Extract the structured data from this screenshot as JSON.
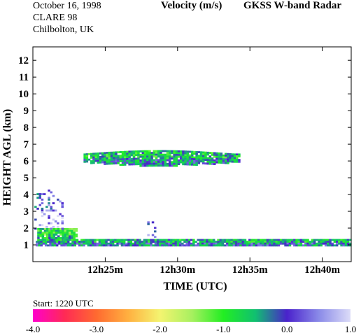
{
  "header": {
    "date": "October  16, 1998",
    "campaign": "CLARE 98",
    "location": "Chilbolton, UK",
    "quantity": "Velocity (m/s)",
    "instrument": "GKSS  W-band Radar"
  },
  "start_label": "Start: 1220 UTC",
  "colorbar": {
    "ticks": [
      "-4.0",
      "-3.0",
      "-2.0",
      "-1.0",
      "0.0",
      "1.0"
    ],
    "min": -4.0,
    "max": 1.0,
    "stops": [
      {
        "v": -4.0,
        "color": "#ff00cc"
      },
      {
        "v": -3.5,
        "color": "#ff2a55"
      },
      {
        "v": -3.0,
        "color": "#ff6a30"
      },
      {
        "v": -2.5,
        "color": "#ffb040"
      },
      {
        "v": -2.0,
        "color": "#f4f470"
      },
      {
        "v": -1.5,
        "color": "#a8f060"
      },
      {
        "v": -1.0,
        "color": "#22ee22"
      },
      {
        "v": -0.5,
        "color": "#10c070"
      },
      {
        "v": 0.0,
        "color": "#4a22cc"
      },
      {
        "v": 0.5,
        "color": "#8a8ae8"
      },
      {
        "v": 1.0,
        "color": "#dcdcf8"
      }
    ]
  },
  "chart_data": {
    "type": "heatmap",
    "title": "Velocity (m/s)",
    "xlabel": "TIME (UTC)",
    "ylabel": "HEIGHT AGL (km)",
    "xtick_labels": [
      "12h25m",
      "12h30m",
      "12h35m",
      "12h40m"
    ],
    "xtick_minutes": [
      25,
      30,
      35,
      40
    ],
    "xlim_minutes": [
      20.0,
      42.0
    ],
    "ytick_labels": [
      "1",
      "2",
      "3",
      "4",
      "5",
      "6",
      "7",
      "8",
      "9",
      "10",
      "11",
      "12"
    ],
    "ylim_km": [
      0.0,
      12.8
    ],
    "value_range": [
      -4.0,
      1.0
    ],
    "features": [
      {
        "name": "mid-level cloud layer",
        "t_start": 23.5,
        "t_end": 34.3,
        "base_km": 5.75,
        "top_km": 6.65,
        "mean_velocity": -0.5
      },
      {
        "name": "low cloud layer",
        "t_start": 20.2,
        "t_end": 42.0,
        "base_km": 1.0,
        "top_km": 1.35,
        "mean_velocity": -0.4
      },
      {
        "name": "low cloud tops",
        "t_start": 20.3,
        "t_end": 23.0,
        "base_km": 1.3,
        "top_km": 2.0,
        "mean_velocity": -0.8
      },
      {
        "name": "scattered echoes",
        "t_start": 20.1,
        "t_end": 22.1,
        "base_km": 2.0,
        "top_km": 4.3,
        "mean_velocity": 0.3
      },
      {
        "name": "isolated plume",
        "t_start": 27.9,
        "t_end": 28.4,
        "base_km": 1.3,
        "top_km": 2.4,
        "mean_velocity": 0.2
      }
    ]
  }
}
